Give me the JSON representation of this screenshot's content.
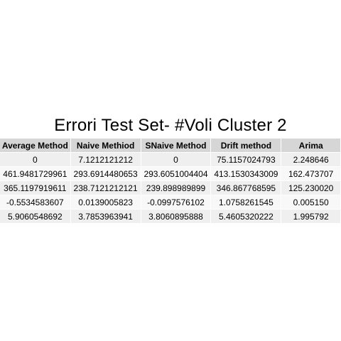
{
  "chart_data": {
    "type": "table",
    "title": "Errori Test Set- #Voli Cluster  2",
    "columns": [
      "Average Method",
      "Naive Methiod",
      "SNaive Method",
      "Drift method",
      "Arima"
    ],
    "rows": [
      [
        "0",
        "7.1212121212",
        "0",
        "75.1157024793",
        "2.248646"
      ],
      [
        "461.9481729961",
        "293.6914480653",
        "293.6051004404",
        "413.1530343009",
        "162.473707"
      ],
      [
        "365.1197919611",
        "238.7121212121",
        "239.898989899",
        "346.867768595",
        "125.230020"
      ],
      [
        "-0.5534583607",
        "0.0139005823",
        "-0.0997576102",
        "1.0758261545",
        "0.005150"
      ],
      [
        "5.9060548692",
        "3.7853963941",
        "3.8060895888",
        "5.4605320222",
        "1.995792"
      ]
    ]
  }
}
